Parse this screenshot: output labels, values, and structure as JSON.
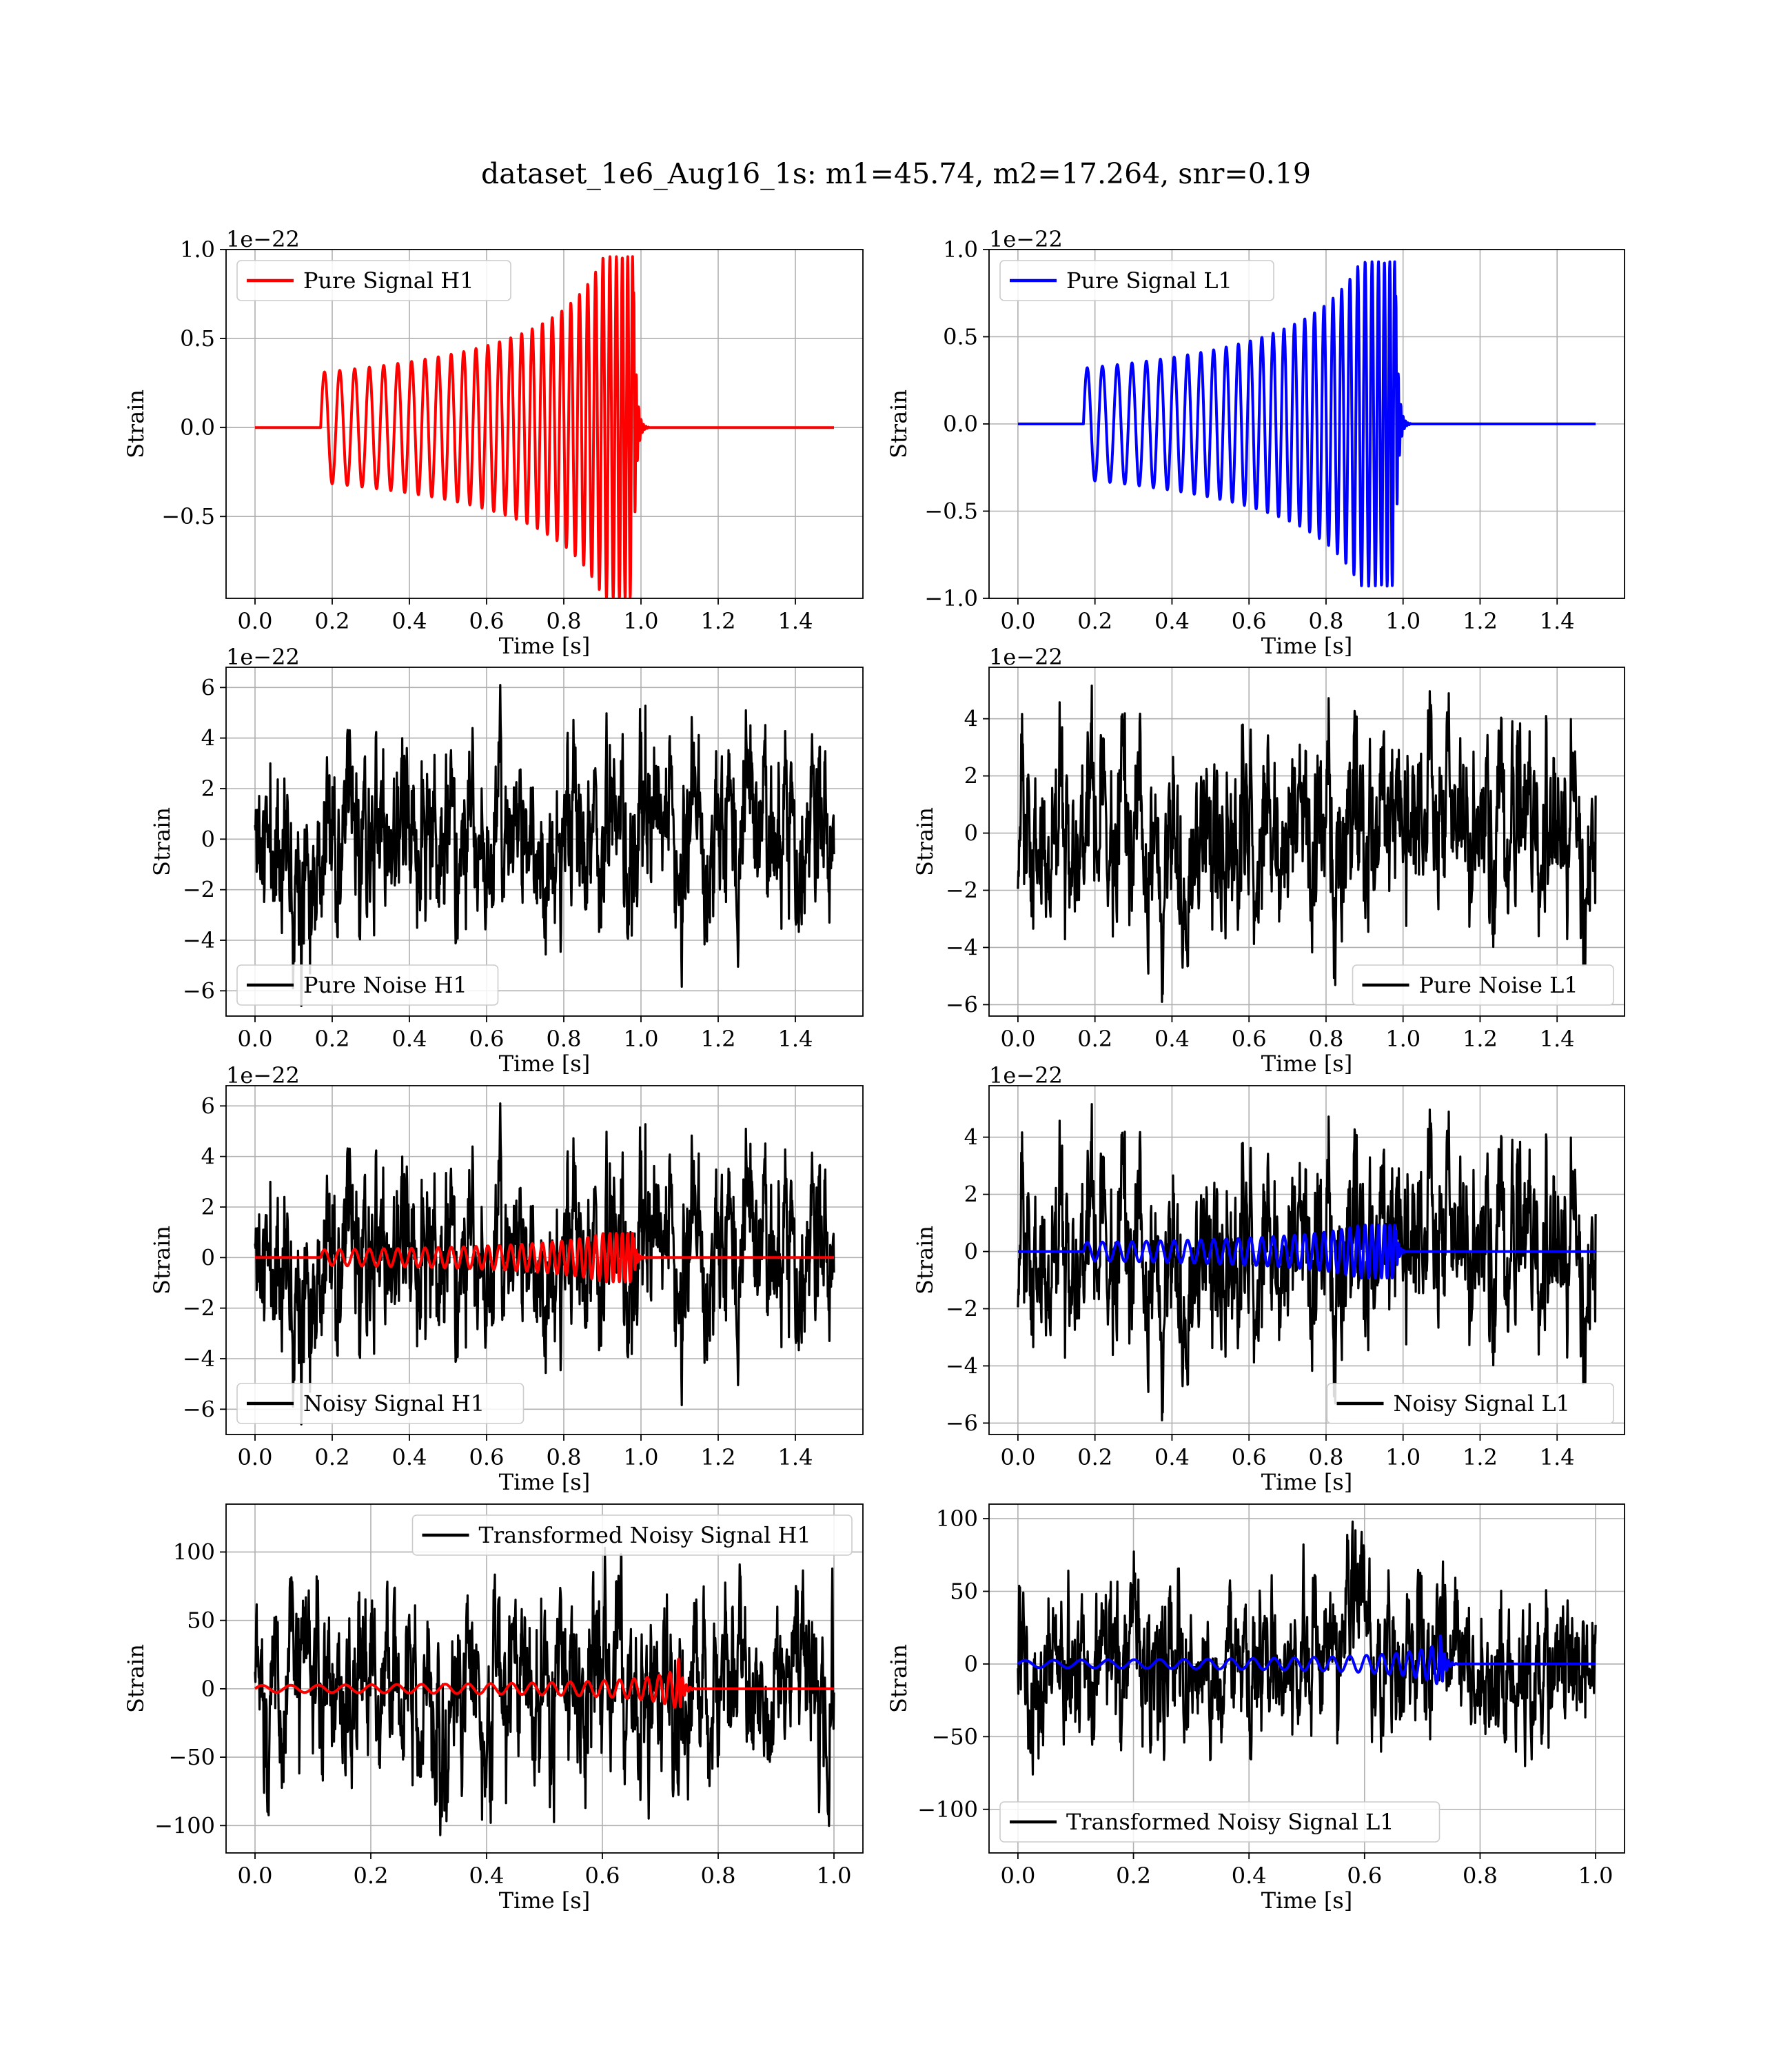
{
  "figure": {
    "title": "dataset_1e6_Aug16_1s: m1=45.74, m2=17.264, snr=0.19"
  },
  "chart_data": [
    {
      "id": "pure-signal-h1",
      "type": "line",
      "xlabel": "Time [s]",
      "ylabel": "Strain",
      "offset_text": "1e−22",
      "xlim": [
        -0.075,
        1.575
      ],
      "ylim": [
        -0.96,
        1.0
      ],
      "xticks": [
        0.0,
        0.2,
        0.4,
        0.6,
        0.8,
        1.0,
        1.2,
        1.4
      ],
      "xticklabels": [
        "0.0",
        "0.2",
        "0.4",
        "0.6",
        "0.8",
        "1.0",
        "1.2",
        "1.4"
      ],
      "yticks": [
        -0.5,
        0.0,
        0.5,
        1.0
      ],
      "yticklabels": [
        "−0.5",
        "0.0",
        "0.5",
        "1.0"
      ],
      "legend": {
        "position": "upper-left"
      },
      "series": [
        {
          "name": "Pure Signal H1",
          "color": "#ff0000",
          "kind": "chirp",
          "t_start": 0.0,
          "t_end": 1.5,
          "t_on": 0.17,
          "t_merge": 0.98,
          "amp_start": 0.31,
          "amp_peak": 0.96,
          "freq_start": 25,
          "freq_end": 160
        }
      ]
    },
    {
      "id": "pure-signal-l1",
      "type": "line",
      "xlabel": "Time [s]",
      "ylabel": "Strain",
      "offset_text": "1e−22",
      "xlim": [
        -0.075,
        1.575
      ],
      "ylim": [
        -1.0,
        1.0
      ],
      "xticks": [
        0.0,
        0.2,
        0.4,
        0.6,
        0.8,
        1.0,
        1.2,
        1.4
      ],
      "xticklabels": [
        "0.0",
        "0.2",
        "0.4",
        "0.6",
        "0.8",
        "1.0",
        "1.2",
        "1.4"
      ],
      "yticks": [
        -1.0,
        -0.5,
        0.0,
        0.5,
        1.0
      ],
      "yticklabels": [
        "−1.0",
        "−0.5",
        "0.0",
        "0.5",
        "1.0"
      ],
      "legend": {
        "position": "upper-left"
      },
      "series": [
        {
          "name": "Pure Signal L1",
          "color": "#0000ff",
          "kind": "chirp",
          "t_start": 0.0,
          "t_end": 1.5,
          "t_on": 0.17,
          "t_merge": 0.98,
          "amp_start": 0.32,
          "amp_peak": 0.93,
          "freq_start": 25,
          "freq_end": 160
        }
      ]
    },
    {
      "id": "pure-noise-h1",
      "type": "line",
      "xlabel": "Time [s]",
      "ylabel": "Strain",
      "offset_text": "1e−22",
      "xlim": [
        -0.075,
        1.575
      ],
      "ylim": [
        -7.0,
        6.8
      ],
      "xticks": [
        0.0,
        0.2,
        0.4,
        0.6,
        0.8,
        1.0,
        1.2,
        1.4
      ],
      "xticklabels": [
        "0.0",
        "0.2",
        "0.4",
        "0.6",
        "0.8",
        "1.0",
        "1.2",
        "1.4"
      ],
      "yticks": [
        -6,
        -4,
        -2,
        0,
        2,
        4,
        6
      ],
      "yticklabels": [
        "−6",
        "−4",
        "−2",
        "0",
        "2",
        "4",
        "6"
      ],
      "legend": {
        "position": "lower-left"
      },
      "series": [
        {
          "name": "Pure Noise H1",
          "color": "#000000",
          "kind": "noise",
          "t_start": 0.0,
          "t_end": 1.5,
          "sigma": 1.5,
          "max": 6.1,
          "min": -6.6,
          "seed": 11
        }
      ]
    },
    {
      "id": "pure-noise-l1",
      "type": "line",
      "xlabel": "Time [s]",
      "ylabel": "Strain",
      "offset_text": "1e−22",
      "xlim": [
        -0.075,
        1.575
      ],
      "ylim": [
        -6.4,
        5.8
      ],
      "xticks": [
        0.0,
        0.2,
        0.4,
        0.6,
        0.8,
        1.0,
        1.2,
        1.4
      ],
      "xticklabels": [
        "0.0",
        "0.2",
        "0.4",
        "0.6",
        "0.8",
        "1.0",
        "1.2",
        "1.4"
      ],
      "yticks": [
        -6,
        -4,
        -2,
        0,
        2,
        4
      ],
      "yticklabels": [
        "−6",
        "−4",
        "−2",
        "0",
        "2",
        "4"
      ],
      "legend": {
        "position": "lower-right"
      },
      "series": [
        {
          "name": "Pure Noise L1",
          "color": "#000000",
          "kind": "noise",
          "t_start": 0.0,
          "t_end": 1.5,
          "sigma": 1.4,
          "max": 5.3,
          "min": -5.9,
          "seed": 23
        }
      ]
    },
    {
      "id": "noisy-signal-h1",
      "type": "line",
      "xlabel": "Time [s]",
      "ylabel": "Strain",
      "offset_text": "1e−22",
      "xlim": [
        -0.075,
        1.575
      ],
      "ylim": [
        -7.0,
        6.8
      ],
      "xticks": [
        0.0,
        0.2,
        0.4,
        0.6,
        0.8,
        1.0,
        1.2,
        1.4
      ],
      "xticklabels": [
        "0.0",
        "0.2",
        "0.4",
        "0.6",
        "0.8",
        "1.0",
        "1.2",
        "1.4"
      ],
      "yticks": [
        -6,
        -4,
        -2,
        0,
        2,
        4,
        6
      ],
      "yticklabels": [
        "−6",
        "−4",
        "−2",
        "0",
        "2",
        "4",
        "6"
      ],
      "legend": {
        "position": "lower-left"
      },
      "series": [
        {
          "name": "Noisy Signal H1",
          "color": "#000000",
          "kind": "noise",
          "t_start": 0.0,
          "t_end": 1.5,
          "sigma": 1.5,
          "max": 6.1,
          "min": -6.6,
          "seed": 11
        },
        {
          "color": "#ff0000",
          "kind": "chirp",
          "t_start": 0.0,
          "t_end": 1.5,
          "t_on": 0.17,
          "t_merge": 0.98,
          "amp_start": 0.31,
          "amp_peak": 0.96,
          "freq_start": 25,
          "freq_end": 160
        }
      ]
    },
    {
      "id": "noisy-signal-l1",
      "type": "line",
      "xlabel": "Time [s]",
      "ylabel": "Strain",
      "offset_text": "1e−22",
      "xlim": [
        -0.075,
        1.575
      ],
      "ylim": [
        -6.4,
        5.8
      ],
      "xticks": [
        0.0,
        0.2,
        0.4,
        0.6,
        0.8,
        1.0,
        1.2,
        1.4
      ],
      "xticklabels": [
        "0.0",
        "0.2",
        "0.4",
        "0.6",
        "0.8",
        "1.0",
        "1.2",
        "1.4"
      ],
      "yticks": [
        -6,
        -4,
        -2,
        0,
        2,
        4
      ],
      "yticklabels": [
        "−6",
        "−4",
        "−2",
        "0",
        "2",
        "4"
      ],
      "legend": {
        "position": "lower-right"
      },
      "series": [
        {
          "name": "Noisy Signal L1",
          "color": "#000000",
          "kind": "noise",
          "t_start": 0.0,
          "t_end": 1.5,
          "sigma": 1.4,
          "max": 5.3,
          "min": -5.9,
          "seed": 23
        },
        {
          "color": "#0000ff",
          "kind": "chirp",
          "t_start": 0.0,
          "t_end": 1.5,
          "t_on": 0.17,
          "t_merge": 0.98,
          "amp_start": 0.32,
          "amp_peak": 0.93,
          "freq_start": 25,
          "freq_end": 160
        }
      ]
    },
    {
      "id": "transformed-noisy-signal-h1",
      "type": "line",
      "xlabel": "Time [s]",
      "ylabel": "Strain",
      "offset_text": "",
      "xlim": [
        -0.05,
        1.05
      ],
      "ylim": [
        -120,
        135
      ],
      "xticks": [
        0.0,
        0.2,
        0.4,
        0.6,
        0.8,
        1.0
      ],
      "xticklabels": [
        "0.0",
        "0.2",
        "0.4",
        "0.6",
        "0.8",
        "1.0"
      ],
      "yticks": [
        -100,
        -50,
        0,
        50,
        100
      ],
      "yticklabels": [
        "−100",
        "−50",
        "0",
        "50",
        "100"
      ],
      "legend": {
        "position": "upper-right"
      },
      "series": [
        {
          "name": "Transformed Noisy Signal H1",
          "color": "#000000",
          "kind": "noise",
          "t_start": 0.0,
          "t_end": 1.0,
          "sigma": 25,
          "max": 103,
          "min": -107,
          "seed": 37
        },
        {
          "color": "#ff0000",
          "kind": "chirp",
          "t_start": 0.0,
          "t_end": 1.0,
          "t_on": 0.0,
          "t_merge": 0.73,
          "amp_start": 2.5,
          "amp_peak": 28,
          "freq_start": 20,
          "freq_end": 150
        }
      ]
    },
    {
      "id": "transformed-noisy-signal-l1",
      "type": "line",
      "xlabel": "Time [s]",
      "ylabel": "Strain",
      "offset_text": "",
      "xlim": [
        -0.05,
        1.05
      ],
      "ylim": [
        -130,
        110
      ],
      "xticks": [
        0.0,
        0.2,
        0.4,
        0.6,
        0.8,
        1.0
      ],
      "xticklabels": [
        "0.0",
        "0.2",
        "0.4",
        "0.6",
        "0.8",
        "1.0"
      ],
      "yticks": [
        -100,
        -50,
        0,
        50,
        100
      ],
      "yticklabels": [
        "−100",
        "−50",
        "0",
        "50",
        "100"
      ],
      "legend": {
        "position": "lower-left"
      },
      "series": [
        {
          "name": "Transformed Noisy Signal L1",
          "color": "#000000",
          "kind": "noise",
          "t_start": 0.0,
          "t_end": 1.0,
          "sigma": 24,
          "max": 98,
          "min": -120,
          "seed": 53
        },
        {
          "color": "#0000ff",
          "kind": "chirp",
          "t_start": 0.0,
          "t_end": 1.0,
          "t_on": 0.0,
          "t_merge": 0.73,
          "amp_start": 2.5,
          "amp_peak": 25,
          "freq_start": 20,
          "freq_end": 150
        }
      ]
    }
  ]
}
